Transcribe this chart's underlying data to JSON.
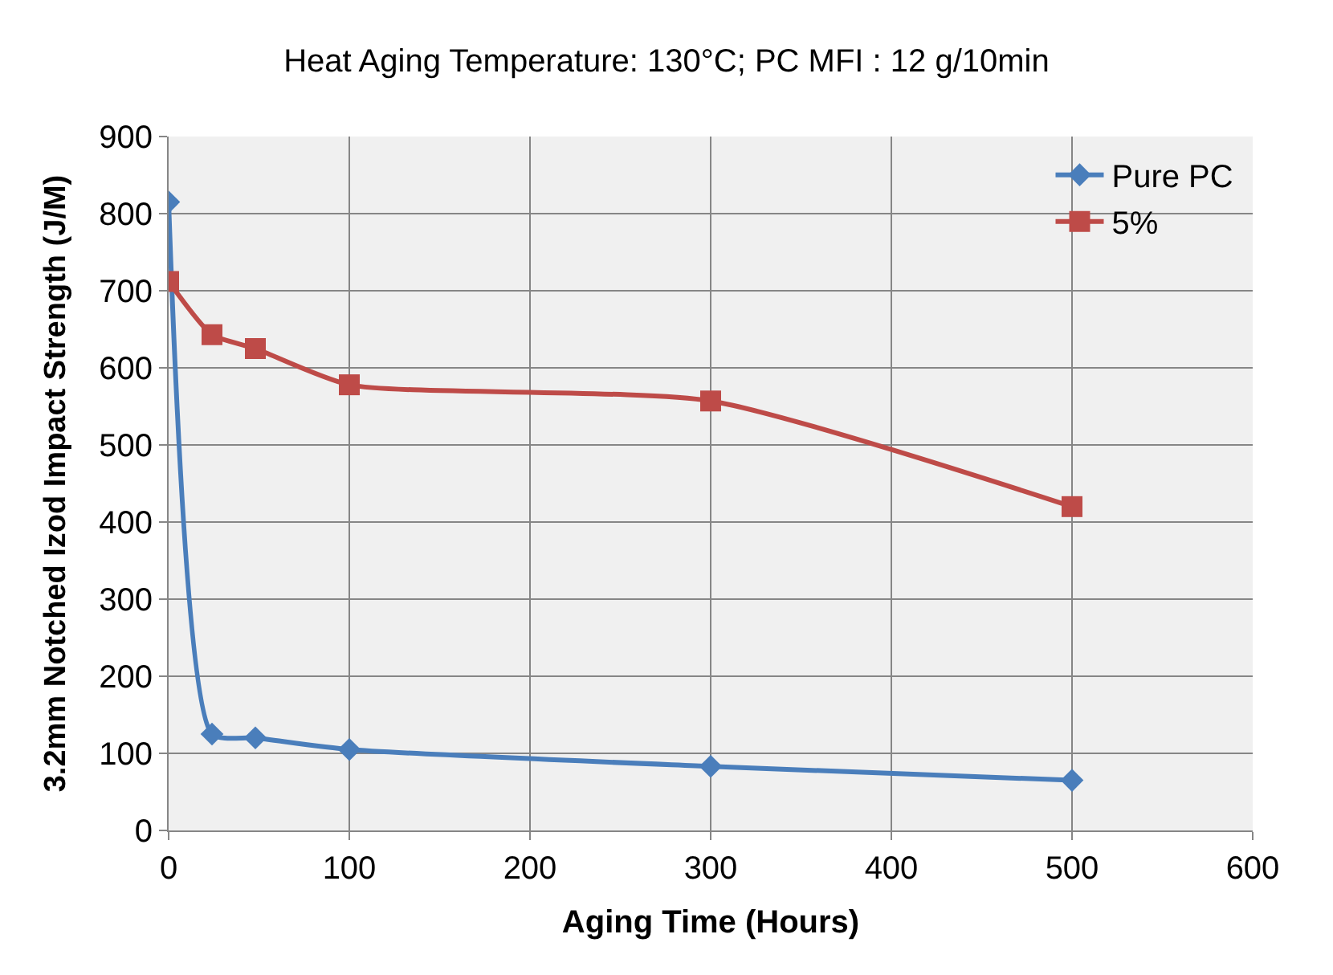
{
  "chart_data": {
    "type": "line",
    "title": "Heat Aging Temperature: 130°C; PC MFI : 12 g/10min",
    "xlabel": "Aging Time (Hours)",
    "ylabel": "3.2mm Notched Izod Impact Strength (J/M)",
    "x": [
      0,
      24,
      48,
      100,
      300,
      500
    ],
    "series": [
      {
        "name": "Pure PC",
        "color": "#4a7ebb",
        "marker": "diamond",
        "values": [
          815,
          125,
          120,
          105,
          83,
          65
        ]
      },
      {
        "name": "5%",
        "color": "#be4b48",
        "marker": "square",
        "values": [
          712,
          643,
          625,
          578,
          557,
          420
        ]
      }
    ],
    "xlim": [
      0,
      600
    ],
    "xticks": [
      0,
      100,
      200,
      300,
      400,
      500,
      600
    ],
    "ylim": [
      0,
      900
    ],
    "yticks": [
      0,
      100,
      200,
      300,
      400,
      500,
      600,
      700,
      800,
      900
    ],
    "grid": true,
    "legend": "top right"
  }
}
